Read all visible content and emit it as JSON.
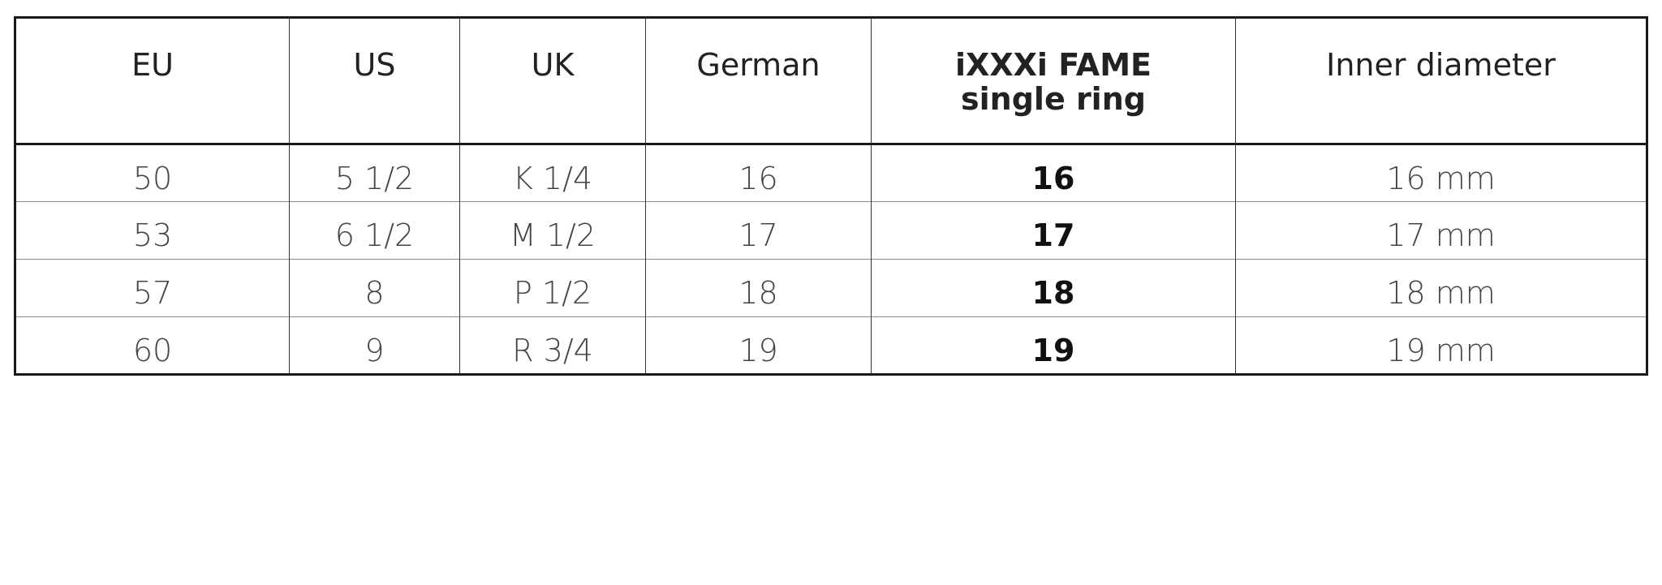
{
  "table": {
    "headers": [
      "EU",
      "US",
      "UK",
      "German",
      "iXXXi FAME\nsingle ring",
      "Inner diameter"
    ],
    "rows": [
      [
        "50",
        "5 1/2",
        "K 1/4",
        "16",
        "16",
        "16 mm"
      ],
      [
        "53",
        "6 1/2",
        "M 1/2",
        "17",
        "17",
        "17 mm"
      ],
      [
        "57",
        "8",
        "P 1/2",
        "18",
        "18",
        "18 mm"
      ],
      [
        "60",
        "9",
        "R 3/4",
        "19",
        "19",
        "19 mm"
      ]
    ]
  }
}
